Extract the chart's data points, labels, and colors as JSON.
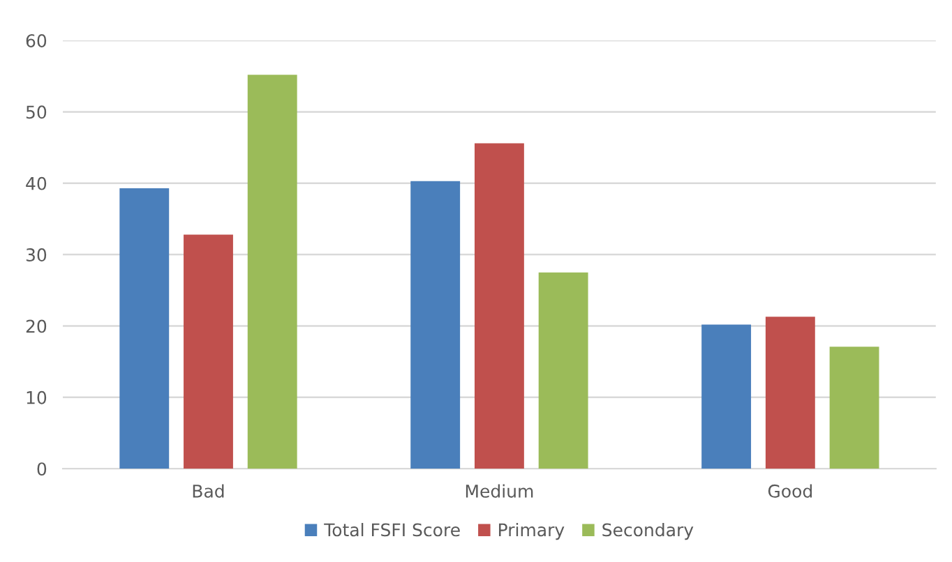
{
  "chart_data": {
    "type": "bar",
    "categories": [
      "Bad",
      "Medium",
      "Good"
    ],
    "series": [
      {
        "name": "Total FSFI Score",
        "color": "#4a7fbb",
        "values": [
          39.3,
          40.3,
          20.2
        ]
      },
      {
        "name": "Primary",
        "color": "#c0504d",
        "values": [
          32.8,
          45.6,
          21.3
        ]
      },
      {
        "name": "Secondary",
        "color": "#9bbb59",
        "values": [
          55.2,
          27.5,
          17.1
        ]
      }
    ],
    "ylim": [
      0,
      60
    ],
    "yticks": [
      0,
      10,
      20,
      30,
      40,
      50,
      60
    ],
    "grid": "y",
    "legend": "bottom"
  }
}
